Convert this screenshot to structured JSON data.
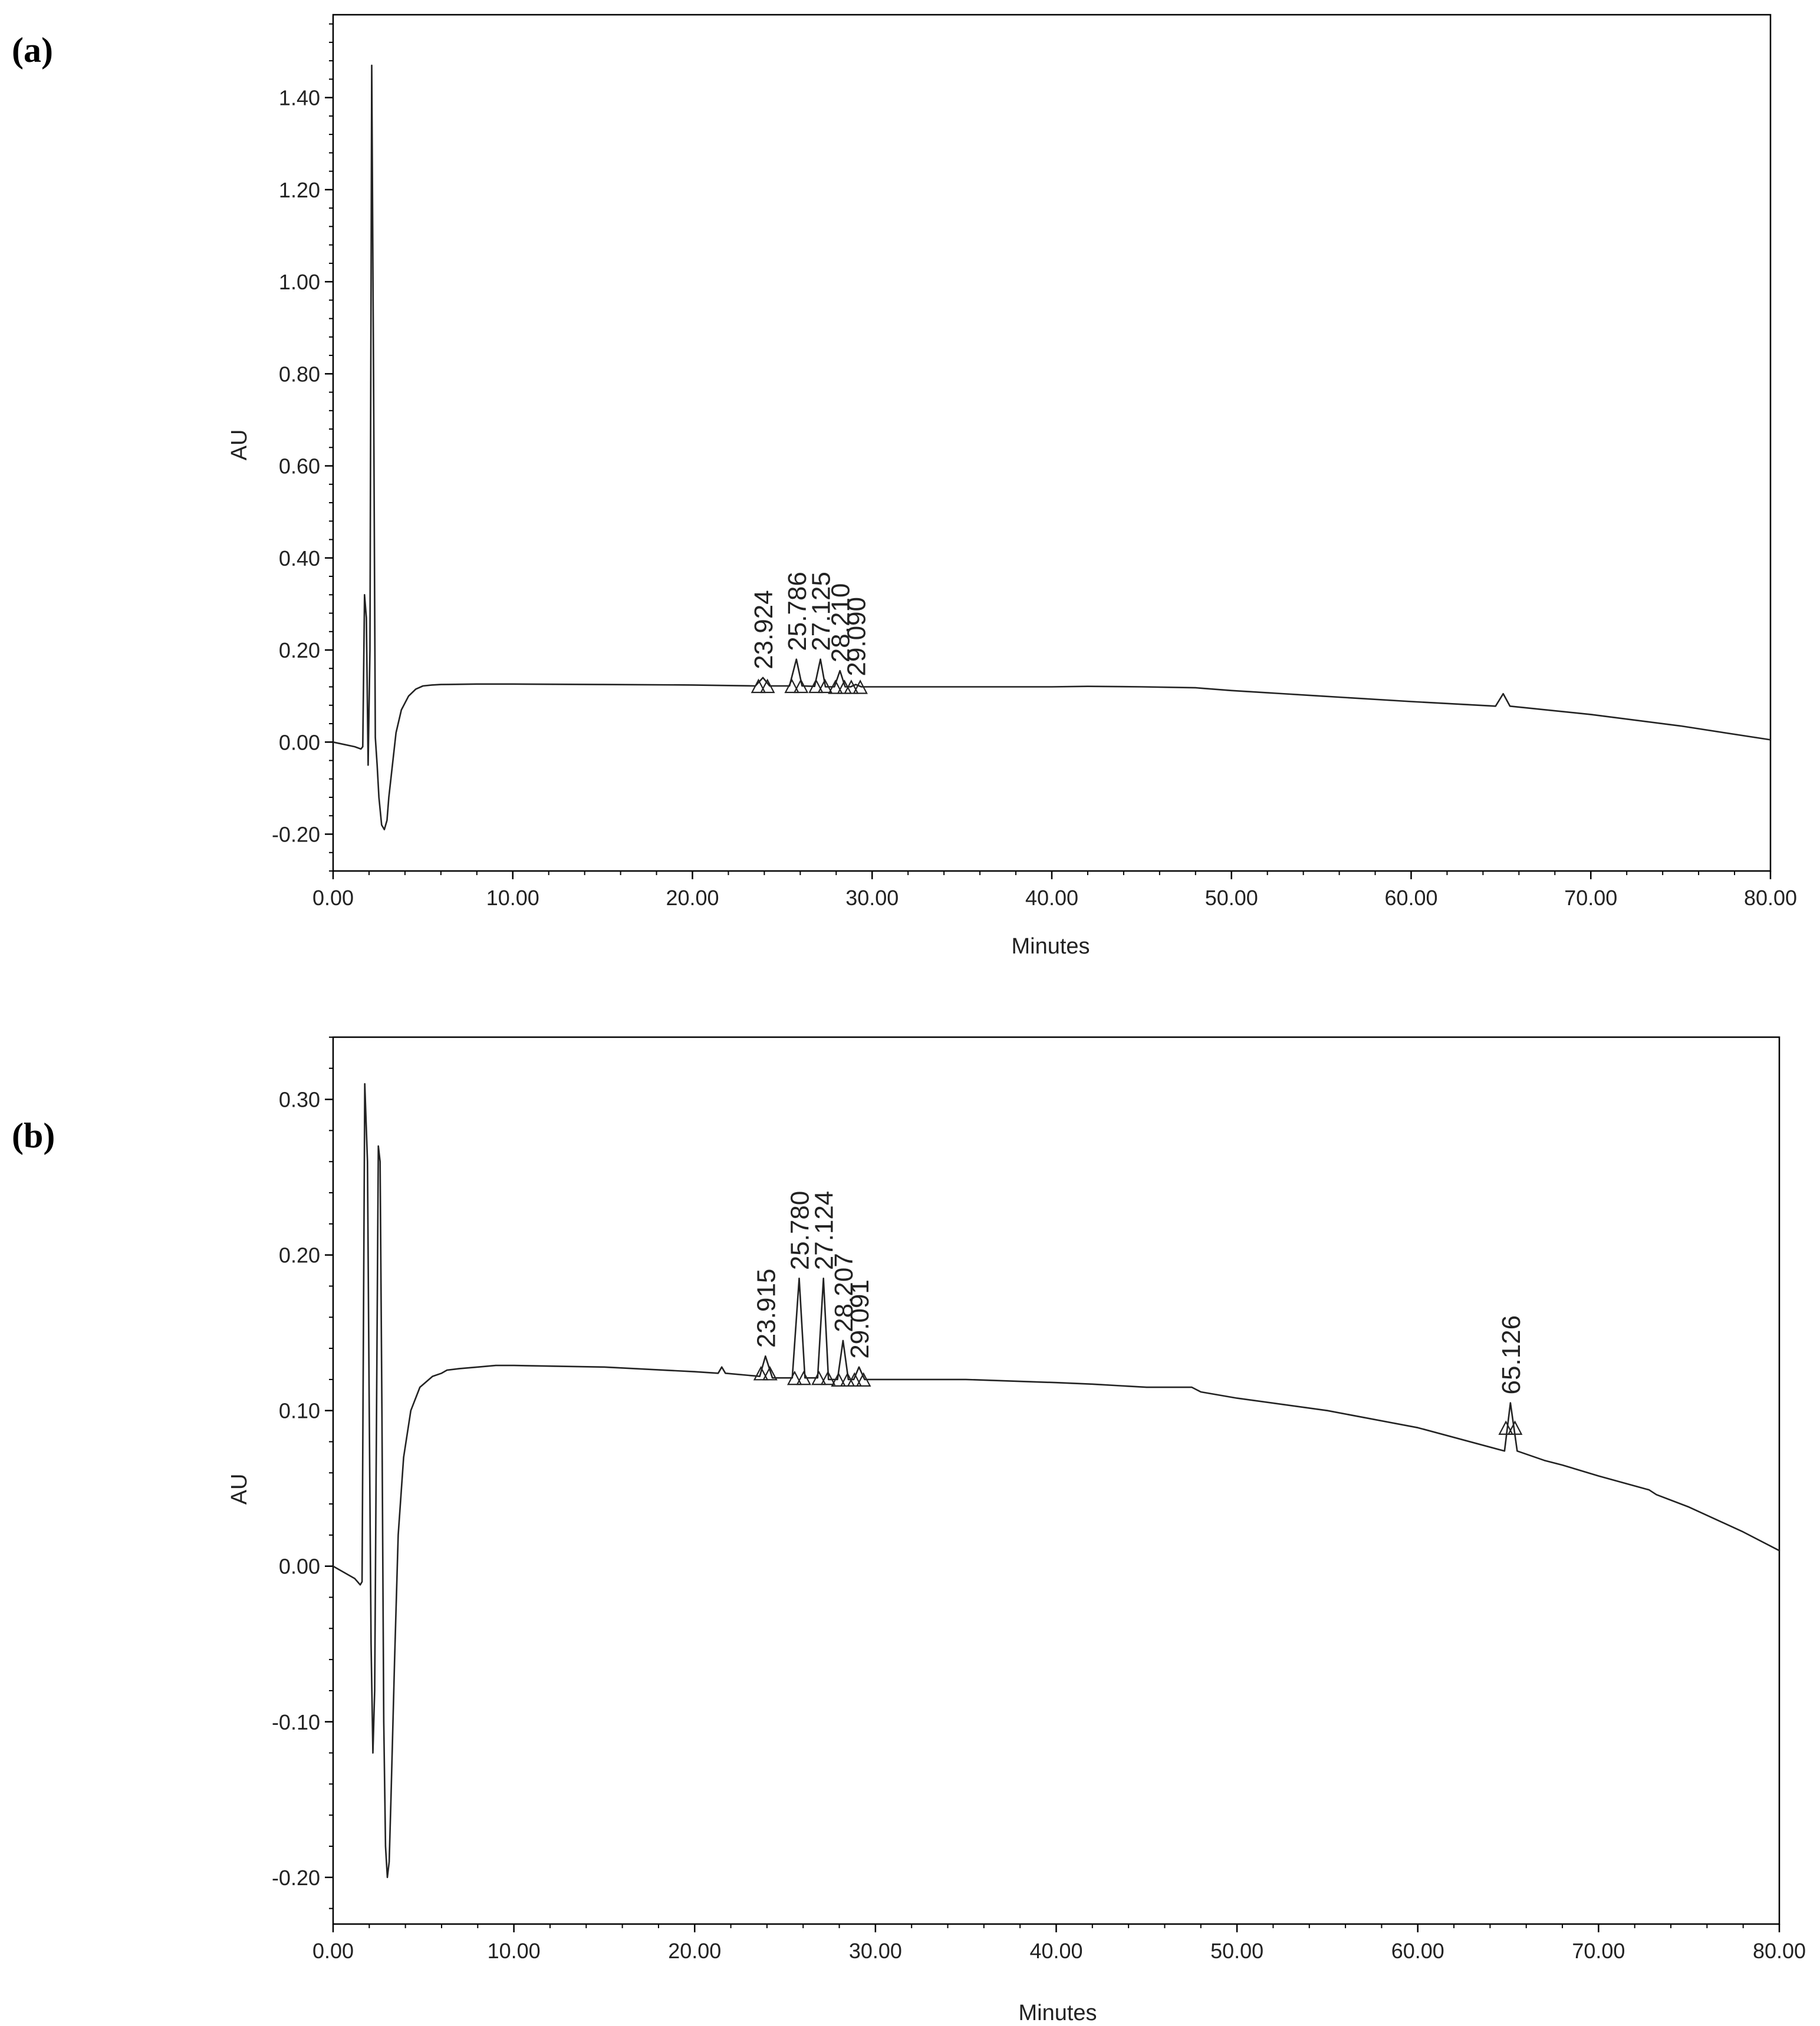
{
  "chart_data": [
    {
      "type": "line",
      "panel_label": "(a)",
      "xlabel": "Minutes",
      "ylabel": "AU",
      "xlim": [
        0,
        80
      ],
      "ylim": [
        -0.28,
        1.58
      ],
      "xticks": [
        0,
        10,
        20,
        30,
        40,
        50,
        60,
        70,
        80
      ],
      "xtick_labels": [
        "0.00",
        "10.00",
        "20.00",
        "30.00",
        "40.00",
        "50.00",
        "60.00",
        "70.00",
        "80.00"
      ],
      "yticks": [
        -0.2,
        0.0,
        0.2,
        0.4,
        0.6,
        0.8,
        1.0,
        1.2,
        1.4
      ],
      "ytick_labels": [
        "-0.20",
        "0.00",
        "0.20",
        "0.40",
        "0.60",
        "0.80",
        "1.00",
        "1.20",
        "1.40"
      ],
      "peaks": [
        {
          "label": "23.924",
          "x": 23.924,
          "height": 0.14
        },
        {
          "label": "25.786",
          "x": 25.786,
          "height": 0.18
        },
        {
          "label": "27.125",
          "x": 27.125,
          "height": 0.18
        },
        {
          "label": "28.210",
          "x": 28.21,
          "height": 0.155
        },
        {
          "label": "29.090",
          "x": 29.09,
          "height": 0.125
        }
      ],
      "series": [
        {
          "x": [
            0,
            1.2,
            1.55,
            1.65,
            1.75,
            1.85,
            1.95,
            2.05,
            2.15,
            2.25,
            2.35,
            2.45,
            2.55,
            2.7,
            2.85,
            3.0,
            3.1,
            3.3,
            3.5,
            3.8,
            4.2,
            4.6,
            5.0,
            5.5,
            6.0,
            8,
            10,
            15,
            20,
            23.5,
            23.924,
            24.3,
            25.4,
            25.786,
            26.1,
            26.8,
            27.125,
            27.4,
            27.9,
            28.21,
            28.5,
            28.8,
            29.09,
            29.4,
            30,
            35,
            40,
            42,
            45,
            48,
            50,
            55,
            60,
            64.7,
            65.126,
            65.5,
            70,
            75,
            80
          ],
          "y": [
            0.0,
            -0.01,
            -0.015,
            -0.01,
            0.32,
            0.27,
            -0.05,
            0.2,
            1.47,
            0.8,
            0.01,
            -0.05,
            -0.12,
            -0.18,
            -0.19,
            -0.17,
            -0.12,
            -0.05,
            0.02,
            0.07,
            0.1,
            0.115,
            0.122,
            0.124,
            0.125,
            0.126,
            0.126,
            0.125,
            0.124,
            0.122,
            0.14,
            0.122,
            0.122,
            0.18,
            0.122,
            0.121,
            0.18,
            0.12,
            0.12,
            0.155,
            0.12,
            0.12,
            0.125,
            0.12,
            0.12,
            0.12,
            0.12,
            0.121,
            0.12,
            0.118,
            0.112,
            0.1,
            0.088,
            0.078,
            0.105,
            0.078,
            0.06,
            0.035,
            0.005
          ]
        }
      ]
    },
    {
      "type": "line",
      "panel_label": "(b)",
      "xlabel": "Minutes",
      "ylabel": "AU",
      "xlim": [
        0,
        80
      ],
      "ylim": [
        -0.23,
        0.34
      ],
      "xticks": [
        0,
        10,
        20,
        30,
        40,
        50,
        60,
        70,
        80
      ],
      "xtick_labels": [
        "0.00",
        "10.00",
        "20.00",
        "30.00",
        "40.00",
        "50.00",
        "60.00",
        "70.00",
        "80.00"
      ],
      "yticks": [
        -0.2,
        -0.1,
        0.0,
        0.1,
        0.2,
        0.3
      ],
      "ytick_labels": [
        "-0.20",
        "-0.10",
        "0.00",
        "0.10",
        "0.20",
        "0.30"
      ],
      "peaks": [
        {
          "label": "23.915",
          "x": 23.915,
          "height": 0.135
        },
        {
          "label": "25.780",
          "x": 25.78,
          "height": 0.185
        },
        {
          "label": "27.124",
          "x": 27.124,
          "height": 0.185
        },
        {
          "label": "28.207",
          "x": 28.207,
          "height": 0.145
        },
        {
          "label": "29.091",
          "x": 29.091,
          "height": 0.128
        },
        {
          "label": "65.126",
          "x": 65.126,
          "height": 0.105
        }
      ],
      "series": [
        {
          "x": [
            0,
            1.2,
            1.5,
            1.6,
            1.75,
            1.9,
            2.0,
            2.1,
            2.2,
            2.3,
            2.5,
            2.6,
            2.7,
            2.8,
            2.9,
            3.0,
            3.1,
            3.2,
            3.4,
            3.6,
            3.9,
            4.3,
            4.8,
            5.5,
            6.0,
            6.3,
            7,
            8,
            9,
            10,
            15,
            20,
            21.3,
            21.5,
            21.7,
            23.6,
            23.915,
            24.3,
            25.4,
            25.78,
            26.1,
            26.8,
            27.124,
            27.4,
            27.9,
            28.207,
            28.5,
            28.8,
            29.091,
            29.4,
            30,
            35,
            40,
            42,
            45,
            47.5,
            48,
            50,
            55,
            60,
            64.8,
            65.126,
            65.5,
            67,
            68,
            70,
            72.5,
            72.8,
            73.2,
            75,
            78,
            80
          ],
          "y": [
            0.0,
            -0.008,
            -0.012,
            -0.01,
            0.31,
            0.26,
            0.1,
            -0.05,
            -0.12,
            -0.08,
            0.27,
            0.26,
            0.1,
            -0.1,
            -0.18,
            -0.2,
            -0.19,
            -0.15,
            -0.06,
            0.02,
            0.07,
            0.1,
            0.115,
            0.122,
            0.124,
            0.126,
            0.127,
            0.128,
            0.129,
            0.129,
            0.128,
            0.125,
            0.124,
            0.128,
            0.124,
            0.122,
            0.135,
            0.121,
            0.121,
            0.185,
            0.121,
            0.121,
            0.185,
            0.12,
            0.12,
            0.145,
            0.12,
            0.12,
            0.128,
            0.12,
            0.12,
            0.12,
            0.118,
            0.117,
            0.115,
            0.115,
            0.112,
            0.108,
            0.1,
            0.089,
            0.074,
            0.105,
            0.074,
            0.068,
            0.065,
            0.058,
            0.05,
            0.049,
            0.046,
            0.038,
            0.022,
            0.01
          ]
        }
      ]
    }
  ]
}
